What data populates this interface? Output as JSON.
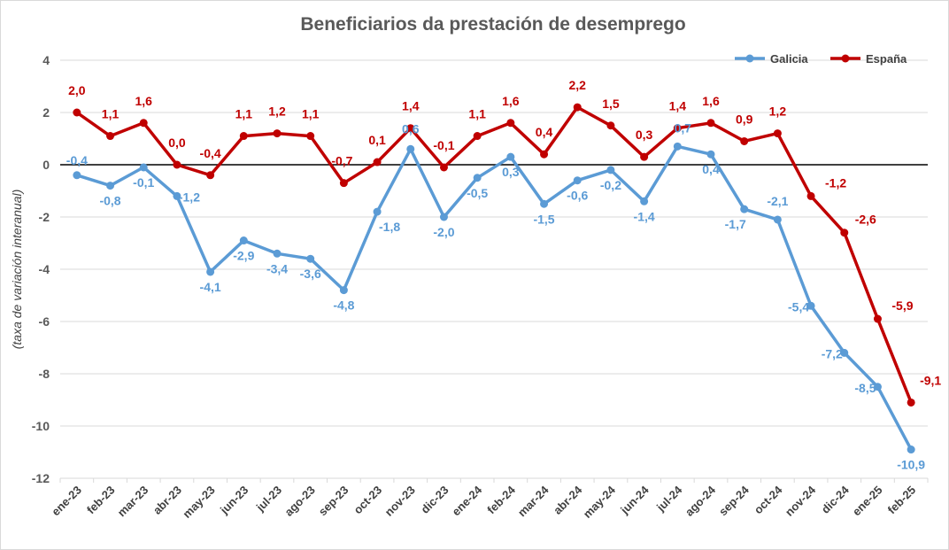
{
  "chart_data": {
    "type": "line",
    "title": "Beneficiarios da prestación de desemprego",
    "ylabel": "(taxa de variación interanual)",
    "xlabel": "",
    "ylim": [
      -12,
      4
    ],
    "yticks": [
      4,
      2,
      0,
      -2,
      -4,
      -6,
      -8,
      -10,
      -12
    ],
    "grid": true,
    "legend_position": "top-right",
    "categories": [
      "ene-23",
      "feb-23",
      "mar-23",
      "abr-23",
      "may-23",
      "jun-23",
      "jul-23",
      "ago-23",
      "sep-23",
      "oct-23",
      "nov-23",
      "dic-23",
      "ene-24",
      "feb-24",
      "mar-24",
      "abr-24",
      "may-24",
      "jun-24",
      "jul-24",
      "ago-24",
      "sep-24",
      "oct-24",
      "nov-24",
      "dic-24",
      "ene-25",
      "feb-25"
    ],
    "series": [
      {
        "name": "Galicia",
        "color": "#5b9bd5",
        "values": [
          -0.4,
          -0.8,
          -0.1,
          -1.2,
          -4.1,
          -2.9,
          -3.4,
          -3.6,
          -4.8,
          -1.8,
          0.6,
          -2.0,
          -0.5,
          0.3,
          -1.5,
          -0.6,
          -0.2,
          -1.4,
          0.7,
          0.4,
          -1.7,
          -2.1,
          -5.4,
          -7.2,
          -8.5,
          -10.9
        ],
        "labels": [
          "-0,4",
          "-0,8",
          "-0,1",
          "-1,2",
          "-4,1",
          "-2,9",
          "-3,4",
          "-3,6",
          "-4,8",
          "-1,8",
          "0,6",
          "-2,0",
          "-0,5",
          "0,3",
          "-1,5",
          "-0,6",
          "-0,2",
          "-1,4",
          "0,7",
          "0,4",
          "-1,7",
          "-2,1",
          "-5,4",
          "-7,2",
          "-8,5",
          "-10,9"
        ]
      },
      {
        "name": "España",
        "color": "#c00000",
        "values": [
          2.0,
          1.1,
          1.6,
          0.0,
          -0.4,
          1.1,
          1.2,
          1.1,
          -0.7,
          0.1,
          1.4,
          -0.1,
          1.1,
          1.6,
          0.4,
          2.2,
          1.5,
          0.3,
          1.4,
          1.6,
          0.9,
          1.2,
          -1.2,
          -2.6,
          -5.9,
          -9.1
        ],
        "labels": [
          "2,0",
          "1,1",
          "1,6",
          "0,0",
          "-0,4",
          "1,1",
          "1,2",
          "1,1",
          "-0,7",
          "0,1",
          "1,4",
          "-0,1",
          "1,1",
          "1,6",
          "0,4",
          "2,2",
          "1,5",
          "0,3",
          "1,4",
          "1,6",
          "0,9",
          "1,2",
          "-1,2",
          "-2,6",
          "-5,9",
          "-9,1"
        ]
      }
    ]
  }
}
